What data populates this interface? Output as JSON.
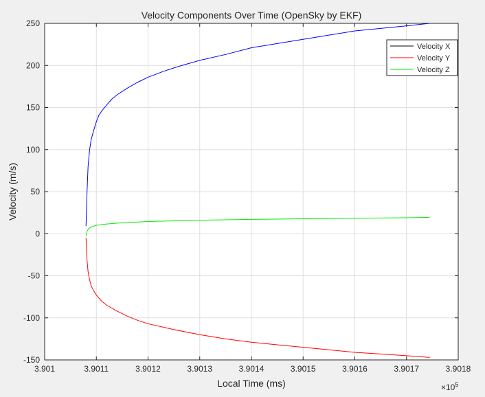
{
  "chart_data": {
    "type": "line",
    "title": "Velocity Components Over Time (OpenSky by EKF)",
    "xlabel": "Local Time (ms)",
    "ylabel": "Velocity (m/s)",
    "x_multiplier_label": "×10",
    "x_multiplier_exponent": "5",
    "xlim": [
      3.901,
      3.9018
    ],
    "ylim": [
      -150,
      250
    ],
    "xticks": [
      3.901,
      3.9011,
      3.9012,
      3.9013,
      3.9014,
      3.9015,
      3.9016,
      3.9017,
      3.9018
    ],
    "xtick_labels": [
      "3.901",
      "3.9011",
      "3.9012",
      "3.9013",
      "3.9014",
      "3.9015",
      "3.9016",
      "3.9017",
      "3.9018"
    ],
    "yticks": [
      -150,
      -100,
      -50,
      0,
      50,
      100,
      150,
      200,
      250
    ],
    "ytick_labels": [
      "-150",
      "-100",
      "-50",
      "0",
      "50",
      "100",
      "150",
      "200",
      "250"
    ],
    "grid": true,
    "legend_position": "top-right",
    "series": [
      {
        "name": "Velocity X",
        "color": "#0000ff",
        "legend_color": "#000000",
        "x": [
          3.90108,
          3.901081,
          3.901082,
          3.901084,
          3.901087,
          3.90109,
          3.901095,
          3.9011,
          3.901105,
          3.901112,
          3.90112,
          3.90113,
          3.90114,
          3.90116,
          3.90118,
          3.9012,
          3.90123,
          3.90126,
          3.9013,
          3.90135,
          3.9014,
          3.90145,
          3.9015,
          3.90155,
          3.9016,
          3.90165,
          3.9017,
          3.901745
        ],
        "y": [
          9,
          28,
          50,
          80,
          100,
          112,
          123,
          133,
          141,
          147,
          153,
          160,
          165,
          173,
          180,
          186,
          193,
          199,
          206,
          213,
          221,
          226,
          231,
          236,
          241,
          244,
          247,
          250
        ]
      },
      {
        "name": "Velocity Y",
        "color": "#ff0000",
        "legend_color": "#ff0000",
        "x": [
          3.90108,
          3.901081,
          3.901082,
          3.901084,
          3.901087,
          3.90109,
          3.901095,
          3.9011,
          3.90111,
          3.90112,
          3.90114,
          3.90116,
          3.90118,
          3.9012,
          3.90125,
          3.9013,
          3.90135,
          3.9014,
          3.90145,
          3.9015,
          3.90155,
          3.9016,
          3.90165,
          3.9017,
          3.901745
        ],
        "y": [
          -5,
          -18,
          -32,
          -45,
          -55,
          -62,
          -68,
          -73,
          -80,
          -85,
          -92,
          -98,
          -103,
          -107,
          -114,
          -120,
          -125,
          -129,
          -132,
          -135,
          -138,
          -141,
          -143,
          -145,
          -147
        ]
      },
      {
        "name": "Velocity Z",
        "color": "#00ee00",
        "legend_color": "#00ee00",
        "x": [
          3.90108,
          3.901082,
          3.901085,
          3.90109,
          3.9011,
          3.90112,
          3.90115,
          3.9012,
          3.9013,
          3.9014,
          3.9015,
          3.9016,
          3.9017,
          3.901745
        ],
        "y": [
          -3,
          3,
          6,
          8,
          10,
          11.5,
          13,
          14.5,
          16,
          17,
          17.8,
          18.4,
          19,
          19.5
        ]
      }
    ]
  }
}
